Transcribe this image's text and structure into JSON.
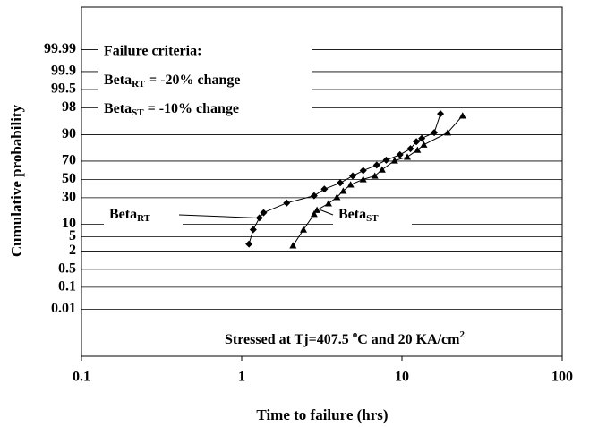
{
  "chart_data": {
    "type": "probability",
    "xlabel": "Time to failure (hrs)",
    "ylabel": "Cumulative probability",
    "xscale": "log",
    "yscale": "probability",
    "xlim": [
      0.1,
      100
    ],
    "xticks": [
      0.1,
      1,
      10,
      100
    ],
    "ylim": [
      2e-05,
      99.99996
    ],
    "yticks": [
      0.01,
      0.1,
      0.5,
      2,
      5,
      10,
      30,
      50,
      70,
      90,
      98,
      99.5,
      99.9,
      99.99
    ],
    "grid": true,
    "series": [
      {
        "name": {
          "base": "Beta",
          "sub": "RT"
        },
        "marker": "diamond",
        "color": "#000000",
        "x": [
          1.11,
          1.18,
          1.29,
          1.37,
          1.91,
          2.83,
          3.28,
          4.12,
          4.93,
          5.73,
          6.96,
          7.98,
          9.71,
          11.3,
          12.3,
          13.3,
          15.9,
          17.4
        ],
        "values": [
          3.2,
          7.5,
          13.5,
          17,
          25,
          32,
          39,
          46,
          54,
          60,
          66,
          71,
          76,
          81,
          86,
          88,
          91,
          97
        ]
      },
      {
        "name": {
          "base": "Beta",
          "sub": "ST"
        },
        "marker": "triangle",
        "color": "#000000",
        "x": [
          2.09,
          2.43,
          2.83,
          2.95,
          3.48,
          3.93,
          4.3,
          4.78,
          5.73,
          6.77,
          7.52,
          9.0,
          10.8,
          12.5,
          13.7,
          19.3,
          23.9
        ],
        "values": [
          2.9,
          7.5,
          16,
          19,
          24.5,
          30.5,
          37,
          44,
          50,
          54,
          61,
          70.5,
          74,
          80,
          84,
          91,
          96.6
        ]
      }
    ],
    "annotations": {
      "criteria_title": "Failure criteria:",
      "criteria": [
        {
          "base": "Beta",
          "sub": "RT",
          "rest": " = -20% change"
        },
        {
          "base": "Beta",
          "sub": "ST",
          "rest": " = -10% change"
        }
      ],
      "condition": {
        "a": "Stressed at Tj=407.5 ",
        "sup1": "o",
        "b": "C and 20 KA/cm",
        "sup2": "2"
      }
    }
  }
}
